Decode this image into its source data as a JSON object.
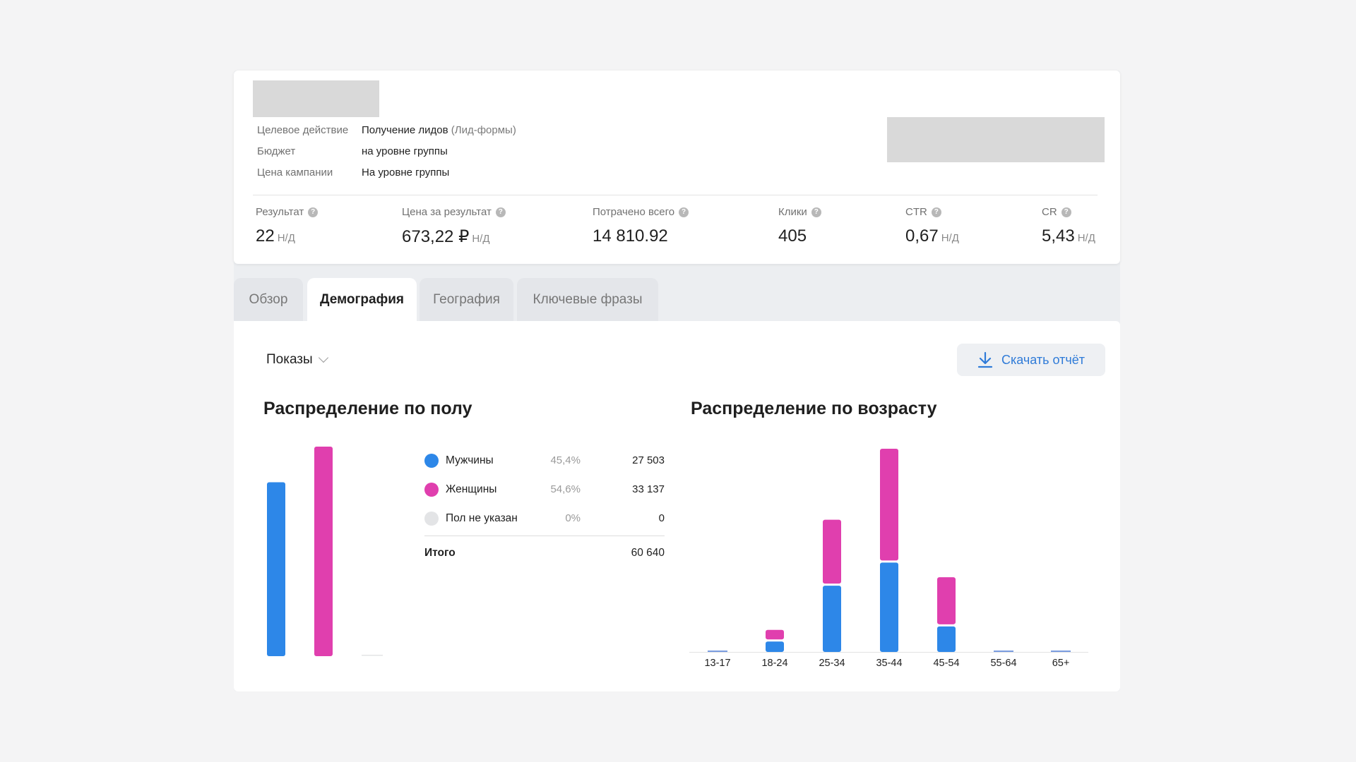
{
  "campaign": {
    "details": [
      {
        "label": "Целевое действие",
        "value": "Получение лидов",
        "extra": "(Лид-формы)"
      },
      {
        "label": "Бюджет",
        "value": "на уровне группы",
        "extra": ""
      },
      {
        "label": "Цена кампании",
        "value": "На уровне группы",
        "extra": ""
      }
    ]
  },
  "metrics": [
    {
      "label": "Результат",
      "value": "22",
      "na": "Н/Д"
    },
    {
      "label": "Цена за результат",
      "value": "673,22 ₽",
      "na": "Н/Д"
    },
    {
      "label": "Потрачено всего",
      "value": "14 810.92",
      "na": ""
    },
    {
      "label": "Клики",
      "value": "405",
      "na": ""
    },
    {
      "label": "CTR",
      "value": "0,67",
      "na": "Н/Д"
    },
    {
      "label": "CR",
      "value": "5,43",
      "na": "Н/Д"
    }
  ],
  "tabs": [
    {
      "label": "Обзор",
      "active": false
    },
    {
      "label": "Демография",
      "active": true
    },
    {
      "label": "География",
      "active": false
    },
    {
      "label": "Ключевые фразы",
      "active": false
    }
  ],
  "filter": {
    "selected": "Показы"
  },
  "download": {
    "label": "Скачать отчёт"
  },
  "gender": {
    "title": "Распределение по полу",
    "rows": [
      {
        "name": "Мужчины",
        "pct": "45,4%",
        "value": "27 503",
        "color": "#2d87e8"
      },
      {
        "name": "Женщины",
        "pct": "54,6%",
        "value": "33 137",
        "color": "#e03fae"
      },
      {
        "name": "Пол не указан",
        "pct": "0%",
        "value": "0",
        "color": "#e3e4e6"
      }
    ],
    "total_label": "Итого",
    "total_value": "60 640"
  },
  "age": {
    "title": "Распределение по возрасту"
  },
  "chart_data": [
    {
      "type": "bar",
      "title": "Распределение по полу",
      "categories": [
        "Мужчины",
        "Женщины",
        "Пол не указан"
      ],
      "values": [
        27503,
        33137,
        0
      ],
      "colors": [
        "#2d87e8",
        "#e03fae",
        "#e3e4e6"
      ]
    },
    {
      "type": "bar",
      "stacked": true,
      "title": "Распределение по возрасту",
      "categories": [
        "13-17",
        "18-24",
        "25-34",
        "35-44",
        "45-54",
        "55-64",
        "65+"
      ],
      "series": [
        {
          "name": "Мужчины",
          "color": "#2d87e8",
          "values": [
            0,
            1300,
            8300,
            11200,
            3200,
            0,
            0
          ]
        },
        {
          "name": "Женщины",
          "color": "#e03fae",
          "values": [
            0,
            1200,
            8000,
            14000,
            5900,
            0,
            0
          ]
        }
      ],
      "ylim": [
        0,
        26000
      ]
    }
  ]
}
